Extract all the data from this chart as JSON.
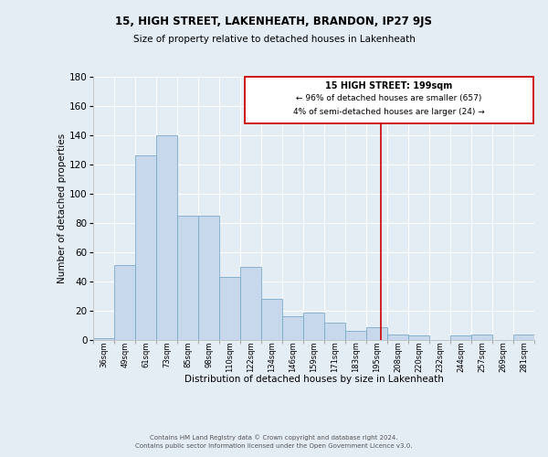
{
  "title": "15, HIGH STREET, LAKENHEATH, BRANDON, IP27 9JS",
  "subtitle": "Size of property relative to detached houses in Lakenheath",
  "xlabel": "Distribution of detached houses by size in Lakenheath",
  "ylabel": "Number of detached properties",
  "bar_color": "#c8d8ec",
  "bar_edge_color": "#7aaac8",
  "bin_labels": [
    "36sqm",
    "49sqm",
    "61sqm",
    "73sqm",
    "85sqm",
    "98sqm",
    "110sqm",
    "122sqm",
    "134sqm",
    "146sqm",
    "159sqm",
    "171sqm",
    "183sqm",
    "195sqm",
    "208sqm",
    "220sqm",
    "232sqm",
    "244sqm",
    "257sqm",
    "269sqm",
    "281sqm"
  ],
  "bar_heights": [
    1,
    51,
    126,
    140,
    85,
    85,
    43,
    50,
    28,
    16,
    19,
    12,
    6,
    9,
    4,
    3,
    0,
    3,
    4,
    0,
    4
  ],
  "ylim": [
    0,
    180
  ],
  "yticks": [
    0,
    20,
    40,
    60,
    80,
    100,
    120,
    140,
    160,
    180
  ],
  "vline_color": "#cc0000",
  "annotation_title": "15 HIGH STREET: 199sqm",
  "annotation_line1": "← 96% of detached houses are smaller (657)",
  "annotation_line2": "4% of semi-detached houses are larger (24) →",
  "annotation_edge_color": "#cc0000",
  "footer1": "Contains HM Land Registry data © Crown copyright and database right 2024.",
  "footer2": "Contains public sector information licensed under the Open Government Licence v3.0.",
  "background_color": "#e4ecf4"
}
